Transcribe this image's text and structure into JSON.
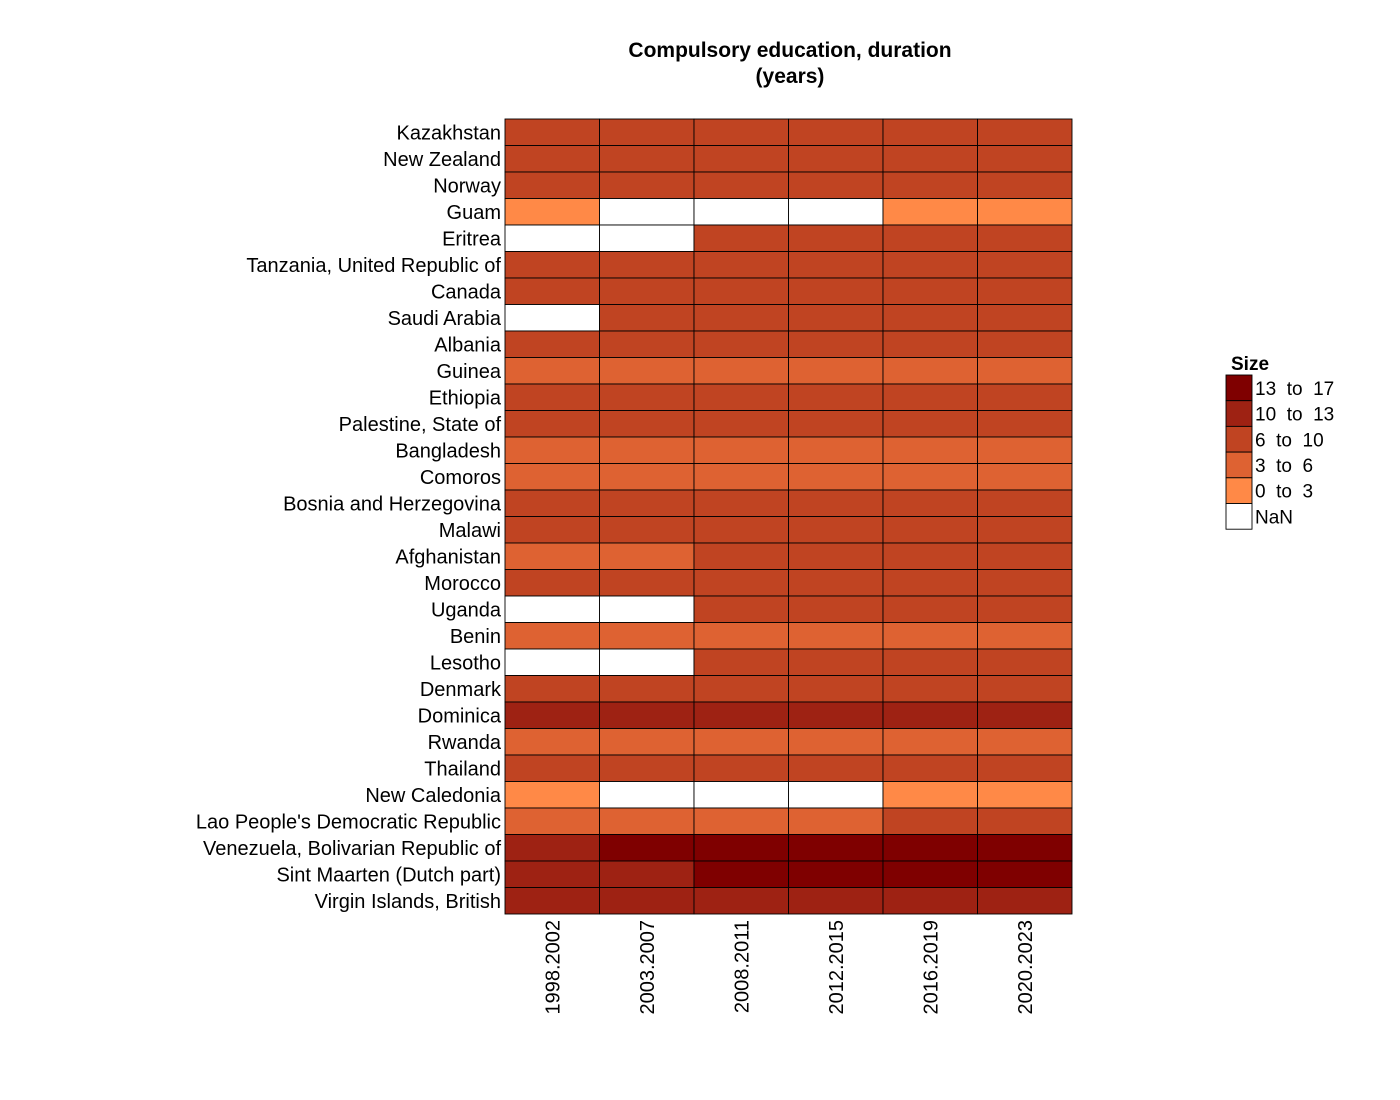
{
  "chart_data": {
    "type": "heatmap",
    "title": "Compulsory education, duration\n(years)",
    "xlabel": "",
    "ylabel": "",
    "x": [
      "1998.2002",
      "2003.2007",
      "2008.2011",
      "2012.2015",
      "2016.2019",
      "2020.2023"
    ],
    "y": [
      "Kazakhstan",
      "New Zealand",
      "Norway",
      "Guam",
      "Eritrea",
      "Tanzania, United Republic of",
      "Canada",
      "Saudi Arabia",
      "Albania",
      "Guinea",
      "Ethiopia",
      "Palestine, State of",
      "Bangladesh",
      "Comoros",
      "Bosnia and Herzegovina",
      "Malawi",
      "Afghanistan",
      "Morocco",
      "Uganda",
      "Benin",
      "Lesotho",
      "Denmark",
      "Dominica",
      "Rwanda",
      "Thailand",
      "New Caledonia",
      "Lao People's Democratic Republic",
      "Venezuela, Bolivarian Republic of",
      "Sint Maarten (Dutch part)",
      "Virgin Islands, British"
    ],
    "value_encoding": "legend bin",
    "values": [
      [
        "6 to 10",
        "6 to 10",
        "6 to 10",
        "6 to 10",
        "6 to 10",
        "6 to 10"
      ],
      [
        "6 to 10",
        "6 to 10",
        "6 to 10",
        "6 to 10",
        "6 to 10",
        "6 to 10"
      ],
      [
        "6 to 10",
        "6 to 10",
        "6 to 10",
        "6 to 10",
        "6 to 10",
        "6 to 10"
      ],
      [
        "0 to 3",
        "NaN",
        "NaN",
        "NaN",
        "0 to 3",
        "0 to 3"
      ],
      [
        "NaN",
        "NaN",
        "6 to 10",
        "6 to 10",
        "6 to 10",
        "6 to 10"
      ],
      [
        "6 to 10",
        "6 to 10",
        "6 to 10",
        "6 to 10",
        "6 to 10",
        "6 to 10"
      ],
      [
        "6 to 10",
        "6 to 10",
        "6 to 10",
        "6 to 10",
        "6 to 10",
        "6 to 10"
      ],
      [
        "NaN",
        "6 to 10",
        "6 to 10",
        "6 to 10",
        "6 to 10",
        "6 to 10"
      ],
      [
        "6 to 10",
        "6 to 10",
        "6 to 10",
        "6 to 10",
        "6 to 10",
        "6 to 10"
      ],
      [
        "3 to 6",
        "3 to 6",
        "3 to 6",
        "3 to 6",
        "3 to 6",
        "3 to 6"
      ],
      [
        "6 to 10",
        "6 to 10",
        "6 to 10",
        "6 to 10",
        "6 to 10",
        "6 to 10"
      ],
      [
        "6 to 10",
        "6 to 10",
        "6 to 10",
        "6 to 10",
        "6 to 10",
        "6 to 10"
      ],
      [
        "3 to 6",
        "3 to 6",
        "3 to 6",
        "3 to 6",
        "3 to 6",
        "3 to 6"
      ],
      [
        "3 to 6",
        "3 to 6",
        "3 to 6",
        "3 to 6",
        "3 to 6",
        "3 to 6"
      ],
      [
        "6 to 10",
        "6 to 10",
        "6 to 10",
        "6 to 10",
        "6 to 10",
        "6 to 10"
      ],
      [
        "6 to 10",
        "6 to 10",
        "6 to 10",
        "6 to 10",
        "6 to 10",
        "6 to 10"
      ],
      [
        "3 to 6",
        "3 to 6",
        "6 to 10",
        "6 to 10",
        "6 to 10",
        "6 to 10"
      ],
      [
        "6 to 10",
        "6 to 10",
        "6 to 10",
        "6 to 10",
        "6 to 10",
        "6 to 10"
      ],
      [
        "NaN",
        "NaN",
        "6 to 10",
        "6 to 10",
        "6 to 10",
        "6 to 10"
      ],
      [
        "3 to 6",
        "3 to 6",
        "3 to 6",
        "3 to 6",
        "3 to 6",
        "3 to 6"
      ],
      [
        "NaN",
        "NaN",
        "6 to 10",
        "6 to 10",
        "6 to 10",
        "6 to 10"
      ],
      [
        "6 to 10",
        "6 to 10",
        "6 to 10",
        "6 to 10",
        "6 to 10",
        "6 to 10"
      ],
      [
        "10 to 13",
        "10 to 13",
        "10 to 13",
        "10 to 13",
        "10 to 13",
        "10 to 13"
      ],
      [
        "3 to 6",
        "3 to 6",
        "3 to 6",
        "3 to 6",
        "3 to 6",
        "3 to 6"
      ],
      [
        "6 to 10",
        "6 to 10",
        "6 to 10",
        "6 to 10",
        "6 to 10",
        "6 to 10"
      ],
      [
        "0 to 3",
        "NaN",
        "NaN",
        "NaN",
        "0 to 3",
        "0 to 3"
      ],
      [
        "3 to 6",
        "3 to 6",
        "3 to 6",
        "3 to 6",
        "6 to 10",
        "6 to 10"
      ],
      [
        "10 to 13",
        "13 to 17",
        "13 to 17",
        "13 to 17",
        "13 to 17",
        "13 to 17"
      ],
      [
        "10 to 13",
        "10 to 13",
        "13 to 17",
        "13 to 17",
        "13 to 17",
        "13 to 17"
      ],
      [
        "10 to 13",
        "10 to 13",
        "10 to 13",
        "10 to 13",
        "10 to 13",
        "10 to 13"
      ]
    ],
    "legend": {
      "title": "Size",
      "placement": "right",
      "entries": [
        {
          "label": "13  to  17",
          "color": "#7f0000"
        },
        {
          "label": "10  to  13",
          "color": "#9e2213"
        },
        {
          "label": "6  to  10",
          "color": "#c04422"
        },
        {
          "label": "3  to  6",
          "color": "#de6232"
        },
        {
          "label": "0  to  3",
          "color": "#ff8947"
        },
        {
          "label": "NaN",
          "color": "#ffffff"
        }
      ]
    },
    "bin_colors": {
      "13 to 17": "#7f0000",
      "10 to 13": "#9e2213",
      "6 to 10": "#c04422",
      "3 to 6": "#de6232",
      "0 to 3": "#ff8947",
      "NaN": "#ffffff"
    },
    "grid": false
  }
}
